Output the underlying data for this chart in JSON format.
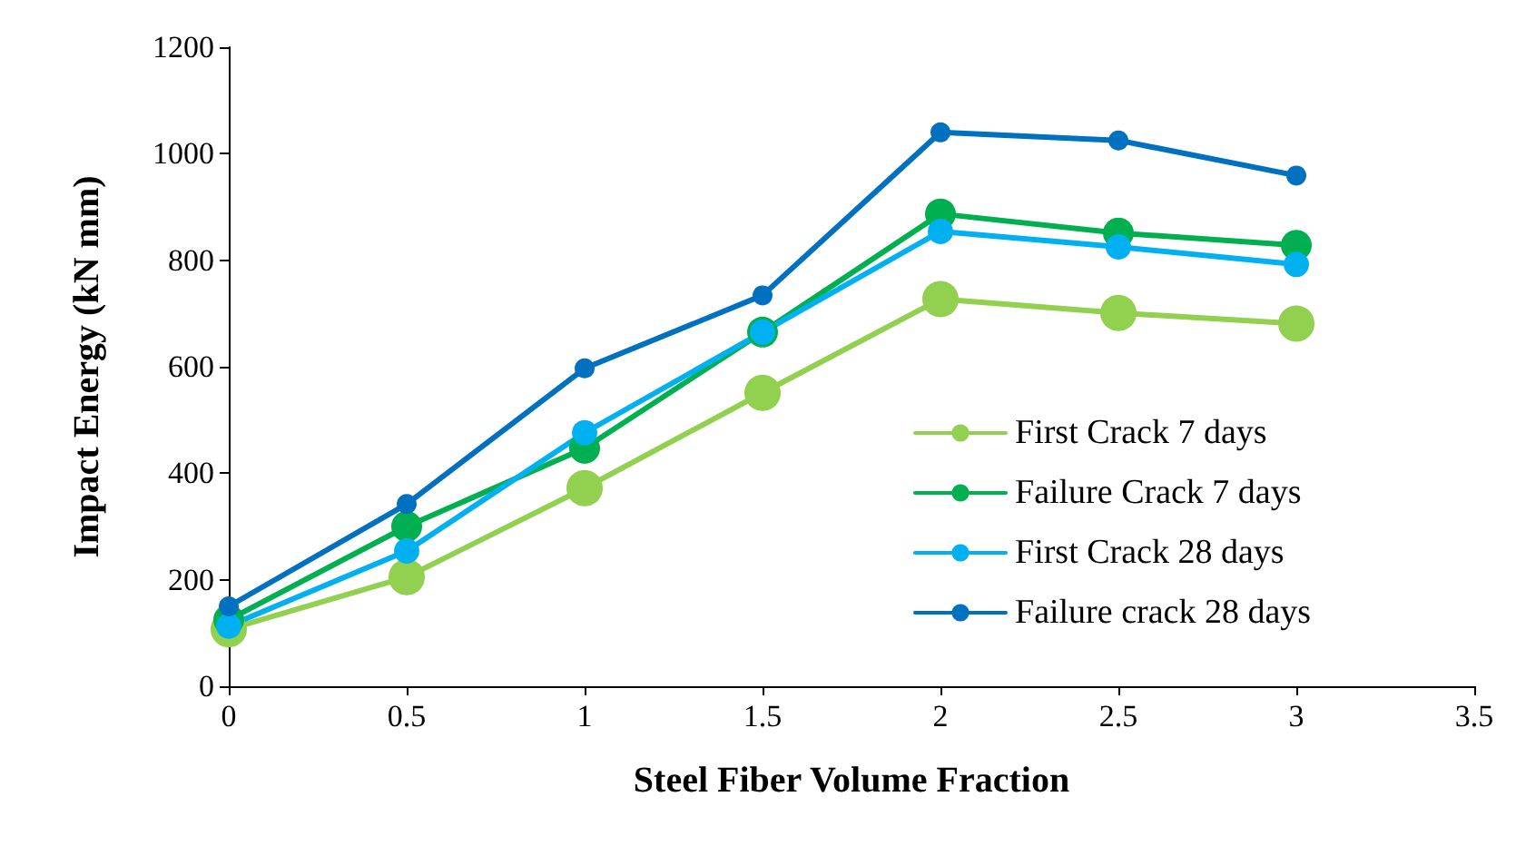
{
  "chart_data": {
    "type": "line",
    "xlabel": "Steel Fiber Volume Fraction",
    "ylabel": "Impact Energy (kN mm)",
    "x": [
      0,
      0.5,
      1,
      1.5,
      2,
      2.5,
      3
    ],
    "series": [
      {
        "name": "First Crack 7 days",
        "color": "#92d050",
        "values": [
          107,
          205,
          372,
          551,
          727,
          701,
          681
        ]
      },
      {
        "name": "Failure Crack 7 days",
        "color": "#00b050",
        "values": [
          125,
          300,
          447,
          665,
          887,
          851,
          828
        ]
      },
      {
        "name": "First Crack 28 days",
        "color": "#00b0f0",
        "values": [
          113,
          254,
          476,
          665,
          854,
          825,
          792
        ]
      },
      {
        "name": "Failure crack 28 days",
        "color": "#0070c0",
        "values": [
          150,
          342,
          597,
          734,
          1040,
          1025,
          959
        ]
      }
    ],
    "xlim": [
      0,
      3.5
    ],
    "xticks": [
      0,
      0.5,
      1,
      1.5,
      2,
      2.5,
      3,
      3.5
    ],
    "ylim": [
      0,
      1200
    ],
    "yticks": [
      0,
      200,
      400,
      600,
      800,
      1000,
      1200
    ],
    "grid": false,
    "legend": "bottom right",
    "marker": "circle",
    "line_style": "solid"
  }
}
